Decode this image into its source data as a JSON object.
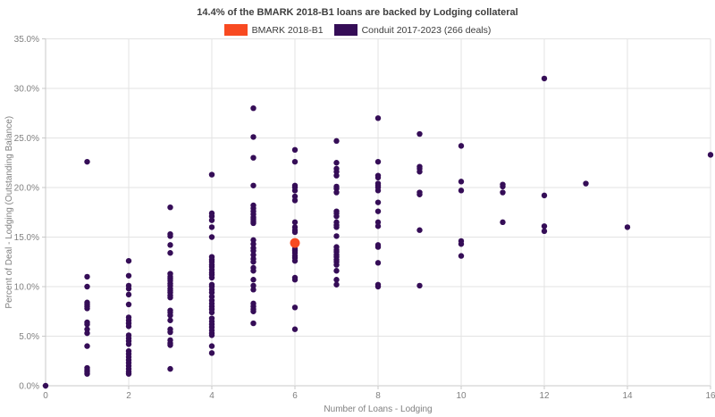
{
  "title": "14.4% of the BMARK 2018-B1 loans are backed by Lodging collateral",
  "legend": {
    "items": [
      {
        "label": "BMARK 2018-B1",
        "color": "#f84a21"
      },
      {
        "label": "Conduit 2017-2023 (266 deals)",
        "color": "#350d57"
      }
    ]
  },
  "chart_data": {
    "type": "scatter",
    "title": "14.4% of the BMARK 2018-B1 loans are backed by Lodging collateral",
    "xlabel": "Number of Loans - Lodging",
    "ylabel": "Percent of Deal - Lodging (Outstanding Balance)",
    "xlim": [
      0,
      16
    ],
    "ylim": [
      0,
      35
    ],
    "x_ticks": [
      0,
      2,
      4,
      6,
      8,
      10,
      12,
      14,
      16
    ],
    "y_ticks": [
      {
        "value": 0,
        "label": "0.0%"
      },
      {
        "value": 5,
        "label": "5.0%"
      },
      {
        "value": 10,
        "label": "10.0%"
      },
      {
        "value": 15,
        "label": "15.0%"
      },
      {
        "value": 20,
        "label": "20.0%"
      },
      {
        "value": 25,
        "label": "25.0%"
      },
      {
        "value": 30,
        "label": "30.0%"
      },
      {
        "value": 35,
        "label": "35.0%"
      }
    ],
    "grid": true,
    "legend_position": "top-center",
    "colors": {
      "grid": "#e3e3e3",
      "axis": "#c9c9c9",
      "tick_text": "#808080",
      "axis_title_text": "#808080"
    },
    "series": [
      {
        "name": "BMARK 2018-B1",
        "color": "#f84a21",
        "marker_radius": 5.5,
        "points": [
          [
            6,
            14.4
          ]
        ]
      },
      {
        "name": "Conduit 2017-2023 (266 deals)",
        "color": "#350d57",
        "marker_radius": 3.2,
        "points": [
          [
            0,
            0.0
          ],
          [
            1,
            22.6
          ],
          [
            1,
            11.0
          ],
          [
            1,
            10.0
          ],
          [
            1,
            8.4
          ],
          [
            1,
            8.2
          ],
          [
            1,
            8.0
          ],
          [
            1,
            7.8
          ],
          [
            1,
            6.4
          ],
          [
            1,
            6.2
          ],
          [
            1,
            5.7
          ],
          [
            1,
            5.3
          ],
          [
            1,
            4.0
          ],
          [
            1,
            1.8
          ],
          [
            1,
            1.6
          ],
          [
            1,
            1.4
          ],
          [
            1,
            1.2
          ],
          [
            2,
            12.6
          ],
          [
            2,
            11.1
          ],
          [
            2,
            10.1
          ],
          [
            2,
            9.8
          ],
          [
            2,
            9.2
          ],
          [
            2,
            8.2
          ],
          [
            2,
            6.9
          ],
          [
            2,
            6.6
          ],
          [
            2,
            6.3
          ],
          [
            2,
            6.0
          ],
          [
            2,
            5.1
          ],
          [
            2,
            4.8
          ],
          [
            2,
            4.5
          ],
          [
            2,
            4.2
          ],
          [
            2,
            3.5
          ],
          [
            2,
            3.2
          ],
          [
            2,
            2.9
          ],
          [
            2,
            2.6
          ],
          [
            2,
            2.3
          ],
          [
            2,
            2.0
          ],
          [
            2,
            1.7
          ],
          [
            2,
            1.4
          ],
          [
            2,
            1.2
          ],
          [
            3,
            18.0
          ],
          [
            3,
            15.3
          ],
          [
            3,
            15.1
          ],
          [
            3,
            14.2
          ],
          [
            3,
            13.4
          ],
          [
            3,
            11.3
          ],
          [
            3,
            11.0
          ],
          [
            3,
            10.8
          ],
          [
            3,
            10.6
          ],
          [
            3,
            10.3
          ],
          [
            3,
            10.1
          ],
          [
            3,
            9.8
          ],
          [
            3,
            9.6
          ],
          [
            3,
            9.4
          ],
          [
            3,
            9.1
          ],
          [
            3,
            8.9
          ],
          [
            3,
            7.6
          ],
          [
            3,
            7.4
          ],
          [
            3,
            7.1
          ],
          [
            3,
            6.6
          ],
          [
            3,
            5.7
          ],
          [
            3,
            5.4
          ],
          [
            3,
            4.6
          ],
          [
            3,
            4.3
          ],
          [
            3,
            4.1
          ],
          [
            3,
            1.7
          ],
          [
            4,
            21.3
          ],
          [
            4,
            17.4
          ],
          [
            4,
            17.1
          ],
          [
            4,
            16.7
          ],
          [
            4,
            16.0
          ],
          [
            4,
            15.0
          ],
          [
            4,
            13.0
          ],
          [
            4,
            12.7
          ],
          [
            4,
            12.5
          ],
          [
            4,
            12.2
          ],
          [
            4,
            12.0
          ],
          [
            4,
            11.7
          ],
          [
            4,
            11.4
          ],
          [
            4,
            11.2
          ],
          [
            4,
            10.9
          ],
          [
            4,
            10.2
          ],
          [
            4,
            10.0
          ],
          [
            4,
            9.7
          ],
          [
            4,
            9.4
          ],
          [
            4,
            9.0
          ],
          [
            4,
            8.6
          ],
          [
            4,
            8.3
          ],
          [
            4,
            8.0
          ],
          [
            4,
            7.7
          ],
          [
            4,
            7.4
          ],
          [
            4,
            6.8
          ],
          [
            4,
            6.5
          ],
          [
            4,
            6.2
          ],
          [
            4,
            5.9
          ],
          [
            4,
            5.6
          ],
          [
            4,
            5.3
          ],
          [
            4,
            5.1
          ],
          [
            4,
            4.0
          ],
          [
            4,
            3.3
          ],
          [
            5,
            28.0
          ],
          [
            5,
            25.1
          ],
          [
            5,
            23.0
          ],
          [
            5,
            20.2
          ],
          [
            5,
            18.2
          ],
          [
            5,
            17.9
          ],
          [
            5,
            17.6
          ],
          [
            5,
            17.3
          ],
          [
            5,
            17.0
          ],
          [
            5,
            16.8
          ],
          [
            5,
            16.6
          ],
          [
            5,
            16.4
          ],
          [
            5,
            14.7
          ],
          [
            5,
            14.3
          ],
          [
            5,
            13.9
          ],
          [
            5,
            13.6
          ],
          [
            5,
            13.2
          ],
          [
            5,
            12.8
          ],
          [
            5,
            12.5
          ],
          [
            5,
            11.9
          ],
          [
            5,
            11.6
          ],
          [
            5,
            10.7
          ],
          [
            5,
            10.1
          ],
          [
            5,
            9.7
          ],
          [
            5,
            8.3
          ],
          [
            5,
            8.0
          ],
          [
            5,
            7.7
          ],
          [
            5,
            7.5
          ],
          [
            5,
            6.3
          ],
          [
            6,
            23.8
          ],
          [
            6,
            22.6
          ],
          [
            6,
            20.2
          ],
          [
            6,
            20.0
          ],
          [
            6,
            19.7
          ],
          [
            6,
            19.1
          ],
          [
            6,
            18.7
          ],
          [
            6,
            16.5
          ],
          [
            6,
            16.0
          ],
          [
            6,
            15.7
          ],
          [
            6,
            15.5
          ],
          [
            6,
            14.1
          ],
          [
            6,
            13.8
          ],
          [
            6,
            13.6
          ],
          [
            6,
            13.4
          ],
          [
            6,
            13.1
          ],
          [
            6,
            12.9
          ],
          [
            6,
            12.6
          ],
          [
            6,
            10.9
          ],
          [
            6,
            10.7
          ],
          [
            6,
            7.9
          ],
          [
            6,
            5.7
          ],
          [
            7,
            24.7
          ],
          [
            7,
            22.5
          ],
          [
            7,
            21.9
          ],
          [
            7,
            21.6
          ],
          [
            7,
            21.2
          ],
          [
            7,
            20.1
          ],
          [
            7,
            19.9
          ],
          [
            7,
            19.5
          ],
          [
            7,
            17.6
          ],
          [
            7,
            17.4
          ],
          [
            7,
            17.1
          ],
          [
            7,
            16.5
          ],
          [
            7,
            16.2
          ],
          [
            7,
            16.0
          ],
          [
            7,
            15.1
          ],
          [
            7,
            14.0
          ],
          [
            7,
            13.7
          ],
          [
            7,
            13.5
          ],
          [
            7,
            13.2
          ],
          [
            7,
            13.0
          ],
          [
            7,
            12.7
          ],
          [
            7,
            12.5
          ],
          [
            7,
            12.2
          ],
          [
            7,
            11.6
          ],
          [
            7,
            10.7
          ],
          [
            7,
            10.2
          ],
          [
            8,
            27.0
          ],
          [
            8,
            22.6
          ],
          [
            8,
            21.2
          ],
          [
            8,
            21.0
          ],
          [
            8,
            20.4
          ],
          [
            8,
            20.2
          ],
          [
            8,
            20.0
          ],
          [
            8,
            19.7
          ],
          [
            8,
            18.5
          ],
          [
            8,
            17.6
          ],
          [
            8,
            16.5
          ],
          [
            8,
            16.1
          ],
          [
            8,
            14.2
          ],
          [
            8,
            14.0
          ],
          [
            8,
            12.4
          ],
          [
            8,
            10.2
          ],
          [
            8,
            10.0
          ],
          [
            9,
            25.4
          ],
          [
            9,
            22.1
          ],
          [
            9,
            21.9
          ],
          [
            9,
            21.6
          ],
          [
            9,
            19.5
          ],
          [
            9,
            19.3
          ],
          [
            9,
            15.7
          ],
          [
            9,
            10.1
          ],
          [
            10,
            24.2
          ],
          [
            10,
            20.6
          ],
          [
            10,
            19.7
          ],
          [
            10,
            14.6
          ],
          [
            10,
            14.3
          ],
          [
            10,
            13.1
          ],
          [
            11,
            20.3
          ],
          [
            11,
            20.1
          ],
          [
            11,
            19.5
          ],
          [
            11,
            16.5
          ],
          [
            12,
            31.0
          ],
          [
            12,
            19.2
          ],
          [
            12,
            16.1
          ],
          [
            12,
            15.6
          ],
          [
            13,
            20.4
          ],
          [
            14,
            16.0
          ],
          [
            16,
            23.3
          ]
        ]
      }
    ]
  }
}
